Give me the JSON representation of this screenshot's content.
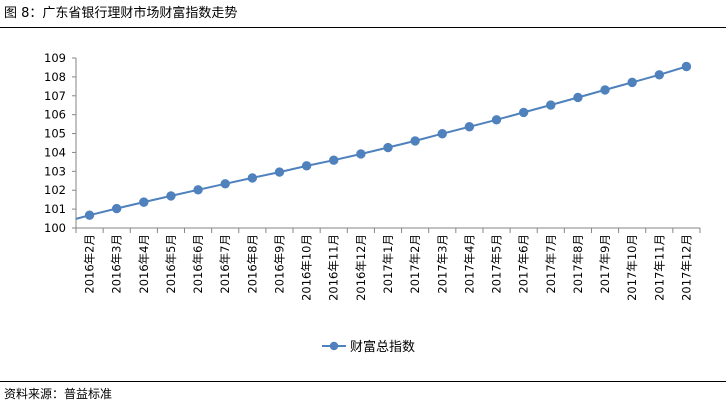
{
  "figure": {
    "title": "图 8：广东省银行理财市场财富指数走势",
    "source": "资料来源：普益标准"
  },
  "chart_data": {
    "type": "line",
    "title": "",
    "xlabel": "",
    "ylabel": "",
    "ylim": [
      100,
      109
    ],
    "yticks": [
      "100",
      "101",
      "102",
      "103",
      "104",
      "105",
      "106",
      "107",
      "108",
      "109"
    ],
    "grid": false,
    "legend_position": "bottom-center",
    "line_color": "#4F81BD",
    "categories": [
      "2016年2月",
      "2016年3月",
      "2016年4月",
      "2016年5月",
      "2016年6月",
      "2016年7月",
      "2016年8月",
      "2016年9月",
      "2016年10月",
      "2016年11月",
      "2016年12月",
      "2017年1月",
      "2017年2月",
      "2017年3月",
      "2017年4月",
      "2017年5月",
      "2017年6月",
      "2017年7月",
      "2017年8月",
      "2017年9月",
      "2017年10月",
      "2017年11月",
      "2017年12月"
    ],
    "series": [
      {
        "name": "财富总指数",
        "values": [
          100.68,
          101.03,
          101.37,
          101.7,
          102.02,
          102.34,
          102.65,
          102.96,
          103.29,
          103.59,
          103.92,
          104.26,
          104.61,
          104.99,
          105.36,
          105.73,
          106.12,
          106.51,
          106.91,
          107.31,
          107.71,
          108.11,
          108.55
        ],
        "line_start_value": 100.48
      }
    ]
  }
}
